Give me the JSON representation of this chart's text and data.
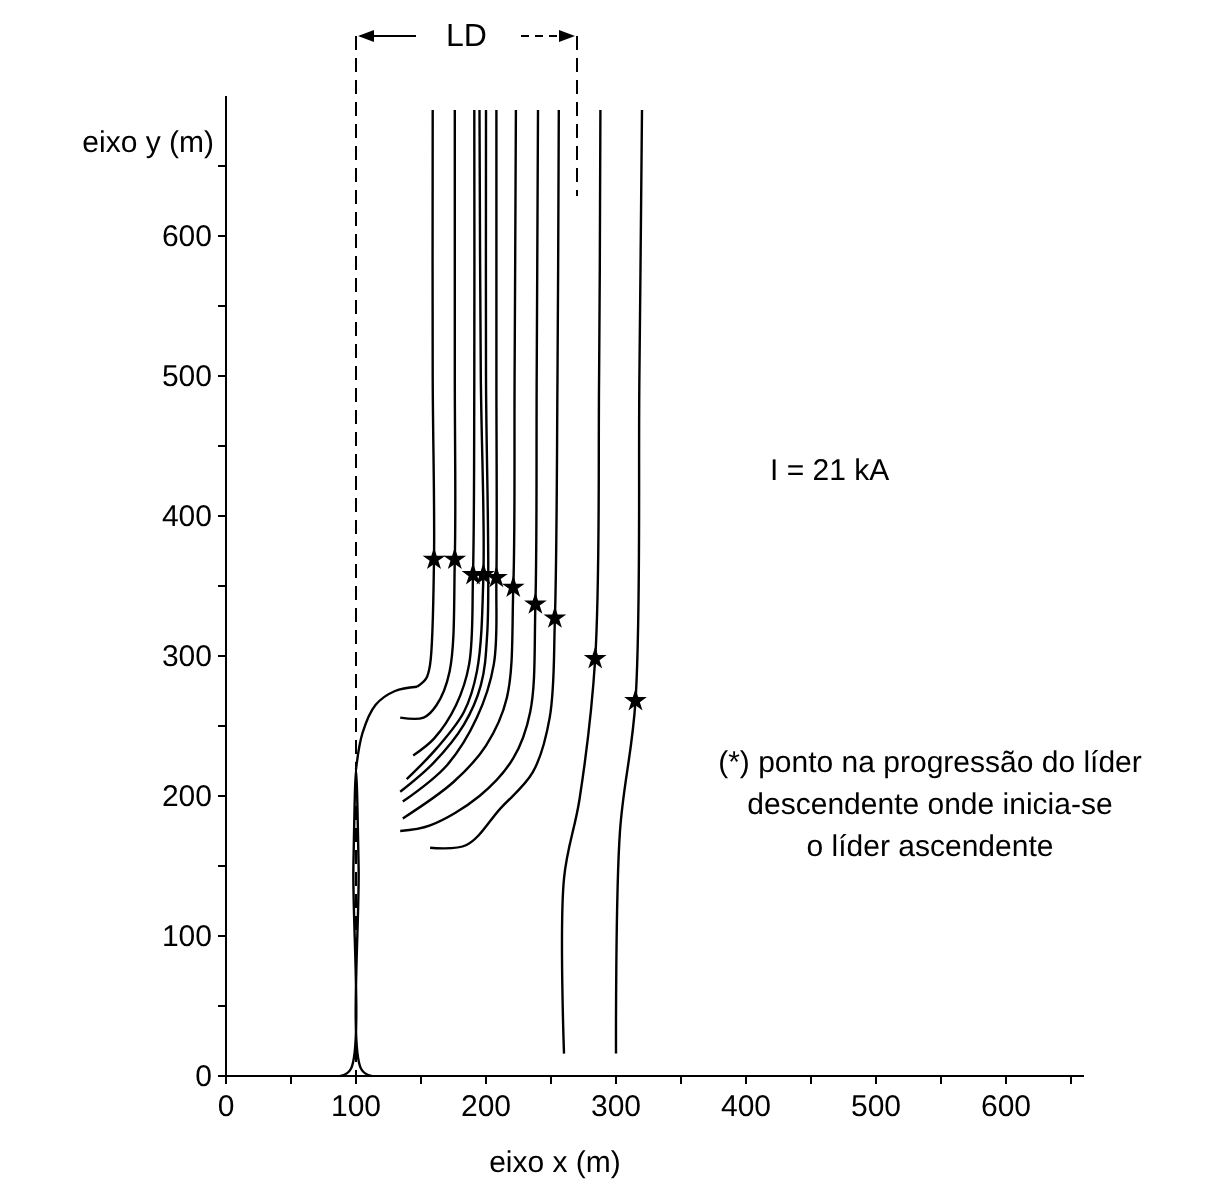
{
  "chart_data": {
    "type": "line",
    "xlabel": "eixo x (m)",
    "ylabel": "eixo y (m)",
    "xlim": [
      0,
      660
    ],
    "ylim": [
      0,
      700
    ],
    "xticks": [
      0,
      {
        "value": 50,
        "label": null
      },
      100,
      {
        "value": 150,
        "label": null
      },
      200,
      {
        "value": 250,
        "label": null
      },
      300,
      {
        "value": 350,
        "label": null
      },
      400,
      {
        "value": 450,
        "label": null
      },
      500,
      {
        "value": 550,
        "label": null
      },
      600,
      {
        "value": 650,
        "label": null
      }
    ],
    "yticks": [
      0,
      {
        "value": 50,
        "label": null
      },
      100,
      {
        "value": 150,
        "label": null
      },
      200,
      {
        "value": 250,
        "label": null
      },
      300,
      {
        "value": 350,
        "label": null
      },
      400,
      {
        "value": 450,
        "label": null
      },
      500,
      {
        "value": 550,
        "label": null
      },
      600,
      {
        "value": 650,
        "label": null
      }
    ],
    "grid": false,
    "line_style": "solid",
    "marker": "none",
    "series": [
      {
        "color": "#000000",
        "x": [
          159,
          159,
          160,
          157,
          154,
          147
        ],
        "values": [
          690,
          500,
          369,
          294,
          284,
          278
        ]
      },
      {
        "color": "#000000",
        "x": [
          176,
          176,
          176,
          172,
          162,
          152,
          134
        ],
        "values": [
          690,
          500,
          369,
          289,
          265,
          256,
          256
        ]
      },
      {
        "color": "#000000",
        "x": [
          191,
          191,
          190,
          187,
          177,
          160,
          144
        ],
        "values": [
          690,
          500,
          358,
          294,
          265,
          241,
          229
        ]
      },
      {
        "color": "#000000",
        "x": [
          195,
          196,
          198,
          193,
          183,
          162,
          139
        ],
        "values": [
          690,
          500,
          358,
          289,
          260,
          234,
          212
        ]
      },
      {
        "color": "#000000",
        "x": [
          200,
          200,
          201,
          196,
          183,
          160,
          134
        ],
        "values": [
          690,
          500,
          317,
          279,
          251,
          224,
          203
        ]
      },
      {
        "color": "#000000",
        "x": [
          208,
          208,
          208,
          206,
          193,
          170,
          136
        ],
        "values": [
          690,
          500,
          356,
          294,
          256,
          222,
          196
        ]
      },
      {
        "color": "#000000",
        "x": [
          223,
          222,
          221,
          216,
          200,
          175,
          136
        ],
        "values": [
          690,
          500,
          349,
          270,
          236,
          210,
          184
        ]
      },
      {
        "color": "#000000",
        "x": [
          240,
          239,
          238,
          234,
          221,
          195,
          157,
          134
        ],
        "values": [
          690,
          500,
          337,
          260,
          227,
          200,
          179,
          175
        ]
      },
      {
        "color": "#000000",
        "x": [
          256,
          255,
          253,
          249,
          236,
          211,
          185,
          157
        ],
        "values": [
          690,
          500,
          327,
          256,
          217,
          191,
          165,
          163
        ]
      },
      {
        "color": "#000000",
        "x": [
          288,
          287,
          284,
          272,
          260,
          260
        ],
        "values": [
          690,
          500,
          298,
          198,
          141,
          16
        ]
      },
      {
        "color": "#000000",
        "x": [
          320,
          318,
          315,
          303,
          300
        ],
        "values": [
          690,
          500,
          268,
          174,
          16
        ]
      },
      {
        "color": "#000000",
        "x": [
          88,
          96,
          98,
          100,
          102,
          104,
          112
        ],
        "values": [
          0,
          5,
          150,
          219,
          150,
          5,
          0
        ]
      },
      {
        "color": "#000000",
        "x": [
          100,
          105,
          115,
          130,
          147
        ],
        "values": [
          219,
          245,
          265,
          275,
          278
        ]
      },
      {
        "type": "scatter",
        "marker": "star",
        "color": "#000000",
        "x": [
          160,
          176,
          190,
          198,
          208,
          221,
          238,
          253,
          284,
          315
        ],
        "values": [
          369,
          369,
          358,
          358,
          356,
          349,
          337,
          327,
          298,
          268
        ]
      }
    ],
    "ref_lines": [
      {
        "axis": "x",
        "value": 100,
        "line_style": "dashed"
      },
      {
        "axis": "x",
        "value": 270,
        "line_style": "dashed"
      }
    ],
    "annotations": [
      "LD",
      "I = 21 kA",
      "(*) ponto na progressão do líder\ndescendente onde inicia-se\no líder ascendente"
    ]
  }
}
